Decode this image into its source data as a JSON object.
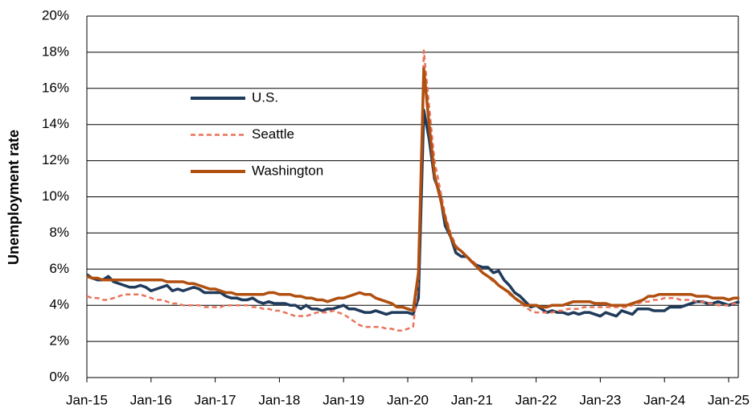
{
  "chart_data": {
    "type": "line",
    "y_label": "Unemployment rate",
    "ylim": [
      0,
      20
    ],
    "yticks": [
      {
        "value": 0,
        "label": "0%"
      },
      {
        "value": 2,
        "label": "2%"
      },
      {
        "value": 4,
        "label": "4%"
      },
      {
        "value": 6,
        "label": "6%"
      },
      {
        "value": 8,
        "label": "8%"
      },
      {
        "value": 10,
        "label": "10%"
      },
      {
        "value": 12,
        "label": "12%"
      },
      {
        "value": 14,
        "label": "14%"
      },
      {
        "value": 16,
        "label": "16%"
      },
      {
        "value": 18,
        "label": "18%"
      },
      {
        "value": 20,
        "label": "20%"
      }
    ],
    "grid": true,
    "legend": "upper-left",
    "categories": [
      "Jan-15",
      null,
      null,
      null,
      null,
      null,
      null,
      null,
      null,
      null,
      null,
      null,
      "Jan-16",
      null,
      null,
      null,
      null,
      null,
      null,
      null,
      null,
      null,
      null,
      null,
      "Jan-17",
      null,
      null,
      null,
      null,
      null,
      null,
      null,
      null,
      null,
      null,
      null,
      "Jan-18",
      null,
      null,
      null,
      null,
      null,
      null,
      null,
      null,
      null,
      null,
      null,
      "Jan-19",
      null,
      null,
      null,
      null,
      null,
      null,
      null,
      null,
      null,
      null,
      null,
      "Jan-20",
      null,
      null,
      null,
      null,
      null,
      null,
      null,
      null,
      null,
      null,
      null,
      "Jan-21",
      null,
      null,
      null,
      null,
      null,
      null,
      null,
      null,
      null,
      null,
      null,
      "Jan-22",
      null,
      null,
      null,
      null,
      null,
      null,
      null,
      null,
      null,
      null,
      null,
      "Jan-23",
      null,
      null,
      null,
      null,
      null,
      null,
      null,
      null,
      null,
      null,
      null,
      "Jan-24",
      null,
      null,
      null,
      null,
      null,
      null,
      null,
      null,
      null,
      null,
      null,
      "Jan-25",
      null,
      null
    ],
    "series": [
      {
        "name": "U.S.",
        "color": "#1f3a5a",
        "dashed": false,
        "values": [
          5.7,
          5.5,
          5.4,
          5.4,
          5.6,
          5.3,
          5.2,
          5.1,
          5.0,
          5.0,
          5.1,
          5.0,
          4.8,
          4.9,
          5.0,
          5.1,
          4.8,
          4.9,
          4.8,
          4.9,
          5.0,
          4.9,
          4.7,
          4.7,
          4.7,
          4.7,
          4.5,
          4.4,
          4.4,
          4.3,
          4.3,
          4.4,
          4.2,
          4.1,
          4.2,
          4.1,
          4.1,
          4.1,
          4.0,
          4.0,
          3.8,
          4.0,
          3.8,
          3.8,
          3.7,
          3.8,
          3.8,
          3.9,
          4.0,
          3.8,
          3.8,
          3.7,
          3.6,
          3.6,
          3.7,
          3.6,
          3.5,
          3.6,
          3.6,
          3.6,
          3.6,
          3.5,
          4.4,
          14.8,
          13.2,
          11.0,
          10.2,
          8.4,
          7.8,
          6.9,
          6.7,
          6.7,
          6.4,
          6.2,
          6.1,
          6.1,
          5.8,
          5.9,
          5.4,
          5.1,
          4.7,
          4.5,
          4.2,
          3.9,
          4.0,
          3.8,
          3.6,
          3.7,
          3.6,
          3.6,
          3.5,
          3.6,
          3.5,
          3.6,
          3.6,
          3.5,
          3.4,
          3.6,
          3.5,
          3.4,
          3.7,
          3.6,
          3.5,
          3.8,
          3.8,
          3.8,
          3.7,
          3.7,
          3.7,
          3.9,
          3.9,
          3.9,
          4.0,
          4.1,
          4.2,
          4.2,
          4.1,
          4.1,
          4.2,
          4.1,
          4.0,
          4.1,
          4.2
        ]
      },
      {
        "name": "Seattle",
        "color": "#e8735a",
        "dashed": true,
        "values": [
          4.5,
          4.4,
          4.4,
          4.3,
          4.3,
          4.4,
          4.5,
          4.6,
          4.6,
          4.6,
          4.6,
          4.5,
          4.4,
          4.3,
          4.3,
          4.2,
          4.1,
          4.1,
          4.0,
          4.0,
          4.0,
          4.0,
          3.9,
          3.9,
          3.9,
          3.9,
          4.0,
          4.0,
          4.0,
          4.0,
          4.0,
          3.9,
          3.9,
          3.8,
          3.8,
          3.7,
          3.7,
          3.6,
          3.5,
          3.4,
          3.4,
          3.4,
          3.5,
          3.6,
          3.6,
          3.6,
          3.7,
          3.6,
          3.5,
          3.3,
          3.1,
          2.9,
          2.8,
          2.8,
          2.8,
          2.8,
          2.7,
          2.7,
          2.6,
          2.6,
          2.7,
          2.8,
          5.5,
          18.1,
          15.0,
          12.0,
          10.5,
          9.0,
          8.0,
          7.3,
          7.0,
          6.7,
          6.5,
          6.2,
          5.8,
          5.6,
          5.3,
          5.1,
          4.9,
          4.6,
          4.4,
          4.1,
          3.9,
          3.7,
          3.6,
          3.6,
          3.6,
          3.6,
          3.7,
          3.7,
          3.8,
          3.8,
          3.8,
          3.9,
          3.9,
          3.9,
          3.9,
          3.9,
          3.9,
          3.9,
          3.9,
          3.9,
          4.0,
          4.1,
          4.2,
          4.2,
          4.3,
          4.3,
          4.4,
          4.4,
          4.4,
          4.3,
          4.3,
          4.3,
          4.2,
          4.2,
          4.1,
          4.1,
          4.0,
          4.0,
          4.0,
          4.1,
          4.1
        ]
      },
      {
        "name": "Washington",
        "color": "#b04f0f",
        "dashed": false,
        "values": [
          5.6,
          5.5,
          5.5,
          5.4,
          5.4,
          5.4,
          5.4,
          5.4,
          5.4,
          5.4,
          5.4,
          5.4,
          5.4,
          5.4,
          5.4,
          5.3,
          5.3,
          5.3,
          5.3,
          5.2,
          5.2,
          5.1,
          5.0,
          4.9,
          4.9,
          4.8,
          4.7,
          4.7,
          4.6,
          4.6,
          4.6,
          4.6,
          4.6,
          4.6,
          4.7,
          4.7,
          4.6,
          4.6,
          4.6,
          4.5,
          4.5,
          4.4,
          4.4,
          4.3,
          4.3,
          4.2,
          4.3,
          4.4,
          4.4,
          4.5,
          4.6,
          4.7,
          4.6,
          4.6,
          4.4,
          4.3,
          4.2,
          4.1,
          3.9,
          3.9,
          3.8,
          3.7,
          5.8,
          17.1,
          14.0,
          11.2,
          10.0,
          8.8,
          7.8,
          7.2,
          7.0,
          6.7,
          6.4,
          6.1,
          5.8,
          5.6,
          5.4,
          5.1,
          4.9,
          4.7,
          4.4,
          4.2,
          4.0,
          4.0,
          4.0,
          3.9,
          3.9,
          4.0,
          4.0,
          4.0,
          4.1,
          4.2,
          4.2,
          4.2,
          4.2,
          4.1,
          4.1,
          4.1,
          4.0,
          4.0,
          4.0,
          4.0,
          4.1,
          4.2,
          4.3,
          4.5,
          4.5,
          4.6,
          4.6,
          4.6,
          4.6,
          4.6,
          4.6,
          4.6,
          4.5,
          4.5,
          4.5,
          4.4,
          4.4,
          4.4,
          4.3,
          4.4,
          4.4
        ]
      }
    ]
  }
}
